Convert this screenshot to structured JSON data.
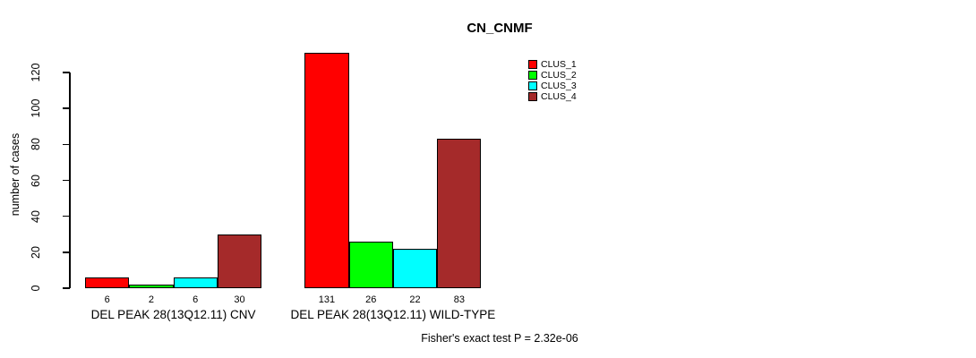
{
  "chart_data": {
    "type": "bar",
    "title": "CN_CNMF",
    "ylabel": "number of cases",
    "xlabel": "",
    "ylim": [
      0,
      131
    ],
    "yticks": [
      0,
      20,
      40,
      60,
      80,
      100,
      120
    ],
    "grid": false,
    "bar_border_color": "#000000",
    "series_colors": [
      "#FF0000",
      "#00FF00",
      "#00FFFF",
      "#A52A2A"
    ],
    "legend": {
      "position": "top-right",
      "box": false,
      "entries": [
        {
          "label": "CLUS_1",
          "color": "#FF0000"
        },
        {
          "label": "CLUS_2",
          "color": "#00FF00"
        },
        {
          "label": "CLUS_3",
          "color": "#00FFFF"
        },
        {
          "label": "CLUS_4",
          "color": "#A52A2A"
        }
      ]
    },
    "categories": [
      "DEL PEAK 28(13Q12.11) CNV",
      "DEL PEAK 28(13Q12.11) WILD-TYPE"
    ],
    "groups": [
      {
        "label": "DEL PEAK 28(13Q12.11) CNV",
        "values": [
          6,
          2,
          6,
          30
        ]
      },
      {
        "label": "DEL PEAK 28(13Q12.11) WILD-TYPE",
        "values": [
          131,
          26,
          22,
          83
        ]
      }
    ],
    "value_labels_shown": true,
    "annotation": "Fisher's exact test P = 2.32e-06"
  }
}
